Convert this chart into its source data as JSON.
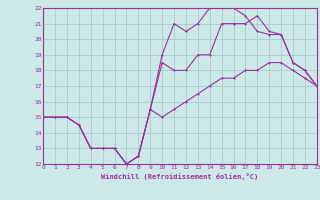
{
  "xlabel": "Windchill (Refroidissement éolien,°C)",
  "background_color": "#cce8e8",
  "grid_color": "#aacccc",
  "line_color": "#993399",
  "xlim": [
    0,
    23
  ],
  "ylim": [
    12,
    22
  ],
  "xticks": [
    0,
    1,
    2,
    3,
    4,
    5,
    6,
    7,
    8,
    9,
    10,
    11,
    12,
    13,
    14,
    15,
    16,
    17,
    18,
    19,
    20,
    21,
    22,
    23
  ],
  "yticks": [
    12,
    13,
    14,
    15,
    16,
    17,
    18,
    19,
    20,
    21,
    22
  ],
  "line1_x": [
    0,
    1,
    2,
    3,
    4,
    5,
    6,
    7,
    8,
    9,
    10,
    11,
    12,
    13,
    14,
    15,
    16,
    17,
    18,
    19,
    20,
    21,
    22,
    23
  ],
  "line1_y": [
    15,
    15,
    15,
    14.5,
    13,
    13,
    13,
    12,
    12.5,
    15.5,
    15,
    15.5,
    16,
    16.5,
    17,
    17.5,
    17.5,
    18,
    18,
    18.5,
    18.5,
    18,
    17.5,
    17
  ],
  "line2_x": [
    0,
    1,
    2,
    3,
    4,
    5,
    6,
    7,
    8,
    9,
    10,
    11,
    12,
    13,
    14,
    15,
    16,
    17,
    18,
    19,
    20,
    21,
    22,
    23
  ],
  "line2_y": [
    15,
    15,
    15,
    14.5,
    13,
    13,
    13,
    12,
    12.5,
    15.5,
    18.5,
    18,
    18,
    19,
    19,
    21,
    21,
    21,
    21.5,
    20.5,
    20.3,
    18.5,
    18,
    17
  ],
  "line3_x": [
    0,
    1,
    2,
    3,
    4,
    5,
    6,
    7,
    8,
    9,
    10,
    11,
    12,
    13,
    14,
    15,
    16,
    17,
    18,
    19,
    20,
    21,
    22,
    23
  ],
  "line3_y": [
    15,
    15,
    15,
    14.5,
    13,
    13,
    13,
    12,
    12.5,
    15.5,
    19,
    21,
    20.5,
    21,
    22,
    22,
    22,
    21.5,
    20.5,
    20.3,
    20.3,
    18.5,
    18,
    17
  ]
}
